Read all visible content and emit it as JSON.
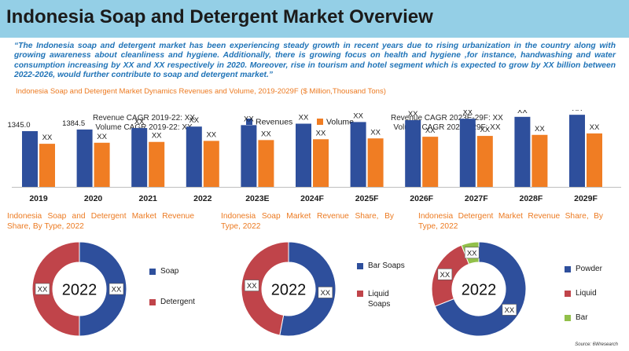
{
  "header": {
    "title": "Indonesia Soap and Detergent Market Overview"
  },
  "intro": {
    "text": "“The Indonesia soap and detergent market has been experiencing steady growth in recent years due to rising urbanization in the country along with growing awareness about cleanliness and hygiene. Additionally, there is growing focus on health and hygiene ,for instance, handwashing and water consumption increasing by XX and XX respectively in 2020. Moreover, rise in tourism and hotel segment which is expected to grow by XX billion between 2022-2026, would further contribute to soap and detergent market.”"
  },
  "source": "Source: 6Wresearch",
  "colors": {
    "revenue": "#2e4f9c",
    "volume": "#f07d23",
    "header": "#94cfe6",
    "detergent": "#c0444a",
    "bar": "#92c04a",
    "axis": "#bfbfbf"
  },
  "chart_data": [
    {
      "type": "bar",
      "title": "Indonesia Soap and Detergent Market Dynamics Revenues and Volume, 2019-2029F ($ Million,Thousand Tons)",
      "categories": [
        "2019",
        "2020",
        "2021",
        "2022",
        "2023E",
        "2024F",
        "2025F",
        "2026F",
        "2027F",
        "2028F",
        "2029F"
      ],
      "legend": [
        "Revenues",
        "Volume"
      ],
      "annotations": {
        "left": [
          "Revenue CAGR 2019-22: XX",
          "Volume CAGR 2019-22: XX"
        ],
        "right": [
          "Revenue CAGR 2023E-29F: XX",
          "Volume CAGR 2023E-29F: XX"
        ]
      },
      "series": [
        {
          "name": "Revenues",
          "values": [
            1345.0,
            1384.5,
            1420,
            1455,
            1490,
            1525,
            1565,
            1610,
            1645,
            1690,
            1740
          ],
          "labels": [
            "1345.0",
            "1384.5",
            "XX",
            "XX",
            "XX",
            "XX",
            "XX",
            "XX",
            "XX",
            "XX",
            "XX"
          ]
        },
        {
          "name": "Volume",
          "values": [
            1040,
            1065,
            1085,
            1110,
            1130,
            1150,
            1170,
            1210,
            1230,
            1255,
            1290
          ],
          "labels": [
            "XX",
            "XX",
            "XX",
            "XX",
            "XX",
            "XX",
            "XX",
            "XX",
            "XX",
            "XX",
            "XX"
          ]
        }
      ],
      "ylim": [
        0,
        1800
      ],
      "xlabel": "",
      "ylabel": "",
      "grid": false
    },
    {
      "type": "pie",
      "title": "Indonesia Soap and Detergent Market Revenue Share, By Type, 2022",
      "center_label": "2022",
      "slices": [
        {
          "label": "Soap",
          "value": 50,
          "data_label": "XX",
          "color": "#2e4f9c"
        },
        {
          "label": "Detergent",
          "value": 50,
          "data_label": "XX",
          "color": "#c0444a"
        }
      ]
    },
    {
      "type": "pie",
      "title": "Indonesia Soap Market Revenue Share, By Type, 2022",
      "center_label": "2022",
      "slices": [
        {
          "label": "Bar Soaps",
          "value": 53,
          "data_label": "XX",
          "color": "#2e4f9c"
        },
        {
          "label": "Liquid Soaps",
          "value": 47,
          "data_label": "XX",
          "color": "#c0444a"
        }
      ]
    },
    {
      "type": "pie",
      "title": "Indonesia Detergent Market Revenue Share, By Type, 2022",
      "center_label": "2022",
      "slices": [
        {
          "label": "Powder",
          "value": 69,
          "data_label": "XX",
          "color": "#2e4f9c"
        },
        {
          "label": "Liquid",
          "value": 25,
          "data_label": "XX",
          "color": "#c0444a"
        },
        {
          "label": "Bar",
          "value": 6,
          "data_label": "XX",
          "color": "#92c04a"
        }
      ]
    }
  ]
}
